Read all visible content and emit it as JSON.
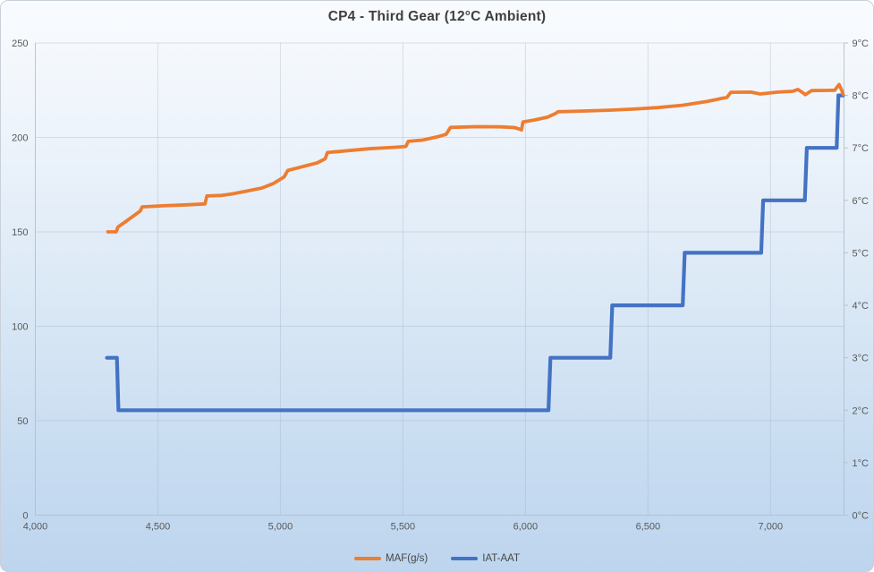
{
  "chart_data": {
    "type": "line",
    "title": "CP4 - Third Gear (12°C Ambient)",
    "grid": true,
    "legend_position": "bottom",
    "x": {
      "min": 4000,
      "max": 7300,
      "ticks": [
        {
          "v": 4000,
          "label": "4,000"
        },
        {
          "v": 4500,
          "label": "4,500"
        },
        {
          "v": 5000,
          "label": "5,000"
        },
        {
          "v": 5500,
          "label": "5,500"
        },
        {
          "v": 6000,
          "label": "6,000"
        },
        {
          "v": 6500,
          "label": "6,500"
        },
        {
          "v": 7000,
          "label": "7,000"
        }
      ]
    },
    "y_left": {
      "min": 0,
      "max": 250,
      "ticks": [
        {
          "v": 0,
          "label": "0"
        },
        {
          "v": 50,
          "label": "50"
        },
        {
          "v": 100,
          "label": "100"
        },
        {
          "v": 150,
          "label": "150"
        },
        {
          "v": 200,
          "label": "200"
        },
        {
          "v": 250,
          "label": "250"
        }
      ]
    },
    "y_right": {
      "min": 0,
      "max": 9,
      "ticks": [
        {
          "v": 0,
          "label": "0°C"
        },
        {
          "v": 1,
          "label": "1°C"
        },
        {
          "v": 2,
          "label": "2°C"
        },
        {
          "v": 3,
          "label": "3°C"
        },
        {
          "v": 4,
          "label": "4°C"
        },
        {
          "v": 5,
          "label": "5°C"
        },
        {
          "v": 6,
          "label": "6°C"
        },
        {
          "v": 7,
          "label": "7°C"
        },
        {
          "v": 8,
          "label": "8°C"
        },
        {
          "v": 9,
          "label": "9°C"
        }
      ]
    },
    "series": [
      {
        "id": "maf",
        "name": "MAF(g/s)",
        "color": "#ED7D31",
        "axis": "left",
        "width": 3.8,
        "points": [
          [
            4296,
            150
          ],
          [
            4330,
            150
          ],
          [
            4337,
            152.5
          ],
          [
            4380,
            156.5
          ],
          [
            4428,
            161
          ],
          [
            4436,
            163.2
          ],
          [
            4520,
            163.8
          ],
          [
            4620,
            164.3
          ],
          [
            4692,
            164.8
          ],
          [
            4700,
            169
          ],
          [
            4760,
            169.3
          ],
          [
            4800,
            170
          ],
          [
            4860,
            171.5
          ],
          [
            4925,
            173.2
          ],
          [
            4970,
            175.5
          ],
          [
            5015,
            179
          ],
          [
            5030,
            182.5
          ],
          [
            5090,
            184.5
          ],
          [
            5150,
            186.5
          ],
          [
            5183,
            188.7
          ],
          [
            5192,
            192
          ],
          [
            5260,
            192.8
          ],
          [
            5360,
            194
          ],
          [
            5470,
            194.8
          ],
          [
            5512,
            195.2
          ],
          [
            5522,
            197.9
          ],
          [
            5580,
            198.6
          ],
          [
            5640,
            200.3
          ],
          [
            5676,
            201.6
          ],
          [
            5694,
            205.3
          ],
          [
            5800,
            205.7
          ],
          [
            5900,
            205.6
          ],
          [
            5955,
            205.2
          ],
          [
            5978,
            204.3
          ],
          [
            5984,
            204
          ],
          [
            5990,
            208.2
          ],
          [
            6040,
            209.3
          ],
          [
            6090,
            210.7
          ],
          [
            6122,
            212.6
          ],
          [
            6133,
            213.6
          ],
          [
            6240,
            214
          ],
          [
            6340,
            214.4
          ],
          [
            6440,
            215
          ],
          [
            6540,
            215.8
          ],
          [
            6640,
            217
          ],
          [
            6740,
            219
          ],
          [
            6800,
            220.6
          ],
          [
            6822,
            221.2
          ],
          [
            6838,
            223.9
          ],
          [
            6920,
            224
          ],
          [
            6958,
            223
          ],
          [
            7030,
            224
          ],
          [
            7090,
            224.4
          ],
          [
            7112,
            225.4
          ],
          [
            7128,
            224
          ],
          [
            7142,
            222.6
          ],
          [
            7168,
            224.8
          ],
          [
            7230,
            224.9
          ],
          [
            7262,
            225
          ],
          [
            7280,
            228
          ],
          [
            7292,
            224.5
          ],
          [
            7296,
            222.8
          ]
        ]
      },
      {
        "id": "iat",
        "name": "IAT-AAT",
        "color": "#4472C4",
        "axis": "right",
        "width": 4.2,
        "points": [
          [
            4292,
            3
          ],
          [
            4333,
            3
          ],
          [
            4339,
            2
          ],
          [
            6094,
            2
          ],
          [
            6102,
            3
          ],
          [
            6346,
            3
          ],
          [
            6354,
            4
          ],
          [
            6642,
            4
          ],
          [
            6650,
            5
          ],
          [
            6962,
            5
          ],
          [
            6970,
            6
          ],
          [
            7140,
            6
          ],
          [
            7148,
            7
          ],
          [
            7270,
            7
          ],
          [
            7277,
            8
          ],
          [
            7296,
            8
          ]
        ]
      }
    ]
  },
  "colors": {
    "axis_text": "#595959",
    "title_text": "#3f3f3f",
    "gridline": "#9fb0c2",
    "axis_line": "#aebdcb"
  }
}
